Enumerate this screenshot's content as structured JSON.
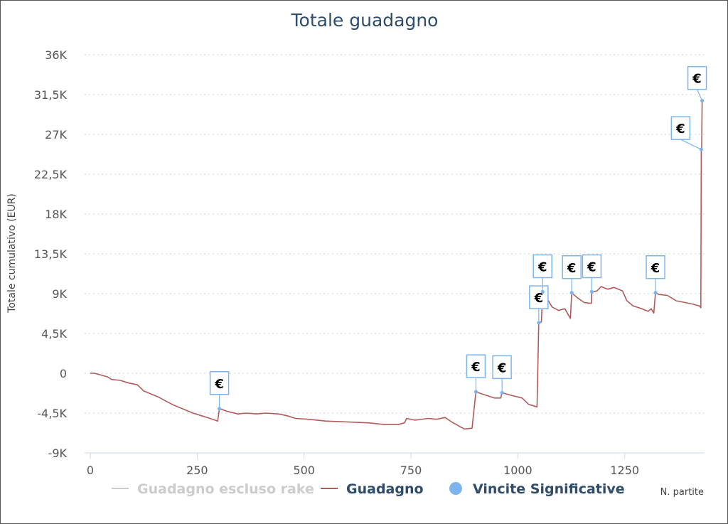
{
  "chart_data": {
    "type": "line",
    "title": "Totale guadagno",
    "ylabel": "Totale cumulativo (EUR)",
    "xlabel": "N. partite",
    "xlim": [
      0,
      1450
    ],
    "ylim": [
      -9000,
      36000
    ],
    "x_ticks": [
      "0",
      "250",
      "500",
      "750",
      "1000",
      "1250"
    ],
    "x_tick_values": [
      0,
      250,
      500,
      750,
      1000,
      1250
    ],
    "y_ticks": [
      "-9K",
      "-4,5K",
      "0",
      "4,5K",
      "9K",
      "13,5K",
      "18K",
      "22,5K",
      "27K",
      "31,5K",
      "36K"
    ],
    "y_tick_values": [
      -9000,
      -4500,
      0,
      4500,
      9000,
      13500,
      18000,
      22500,
      27000,
      31500,
      36000
    ],
    "grid": "horizontal-dotted",
    "legend_position": "bottom",
    "legend": [
      {
        "name": "Guadagno escluso rake",
        "color": "#cccccc",
        "marker": "line",
        "disabled": true
      },
      {
        "name": "Guadagno",
        "color": "#b35a5a",
        "marker": "line",
        "disabled": false
      },
      {
        "name": "Vincite Significative",
        "color": "#7cb5ec",
        "marker": "circle",
        "disabled": false
      }
    ],
    "series": [
      {
        "name": "Guadagno",
        "color": "#b35a5a",
        "points": [
          [
            0,
            0
          ],
          [
            10,
            0
          ],
          [
            25,
            -200
          ],
          [
            40,
            -400
          ],
          [
            50,
            -700
          ],
          [
            70,
            -800
          ],
          [
            90,
            -1100
          ],
          [
            110,
            -1300
          ],
          [
            125,
            -2000
          ],
          [
            140,
            -2300
          ],
          [
            160,
            -2700
          ],
          [
            175,
            -3100
          ],
          [
            195,
            -3600
          ],
          [
            215,
            -4000
          ],
          [
            240,
            -4500
          ],
          [
            260,
            -4800
          ],
          [
            280,
            -5100
          ],
          [
            298,
            -5400
          ],
          [
            302,
            -4000
          ],
          [
            320,
            -4300
          ],
          [
            345,
            -4600
          ],
          [
            365,
            -4500
          ],
          [
            390,
            -4600
          ],
          [
            410,
            -4500
          ],
          [
            440,
            -4600
          ],
          [
            460,
            -4800
          ],
          [
            480,
            -5100
          ],
          [
            510,
            -5200
          ],
          [
            550,
            -5400
          ],
          [
            600,
            -5500
          ],
          [
            650,
            -5600
          ],
          [
            690,
            -5800
          ],
          [
            720,
            -5800
          ],
          [
            735,
            -5600
          ],
          [
            740,
            -5100
          ],
          [
            760,
            -5300
          ],
          [
            790,
            -5100
          ],
          [
            810,
            -5200
          ],
          [
            830,
            -5000
          ],
          [
            845,
            -5500
          ],
          [
            860,
            -5900
          ],
          [
            875,
            -6300
          ],
          [
            893,
            -6200
          ],
          [
            902,
            -2100
          ],
          [
            920,
            -2400
          ],
          [
            945,
            -2800
          ],
          [
            960,
            -2800
          ],
          [
            963,
            -2200
          ],
          [
            985,
            -2500
          ],
          [
            1010,
            -2800
          ],
          [
            1025,
            -3500
          ],
          [
            1045,
            -3800
          ],
          [
            1049,
            5700
          ],
          [
            1055,
            5800
          ],
          [
            1058,
            9200
          ],
          [
            1065,
            8700
          ],
          [
            1080,
            7500
          ],
          [
            1095,
            7100
          ],
          [
            1110,
            7300
          ],
          [
            1123,
            6200
          ],
          [
            1126,
            9100
          ],
          [
            1140,
            8500
          ],
          [
            1155,
            8000
          ],
          [
            1172,
            7900
          ],
          [
            1173,
            9200
          ],
          [
            1185,
            9300
          ],
          [
            1195,
            9800
          ],
          [
            1210,
            9500
          ],
          [
            1225,
            9700
          ],
          [
            1245,
            9300
          ],
          [
            1255,
            8200
          ],
          [
            1270,
            7600
          ],
          [
            1290,
            7300
          ],
          [
            1305,
            7000
          ],
          [
            1312,
            7300
          ],
          [
            1318,
            6800
          ],
          [
            1322,
            9100
          ],
          [
            1330,
            8900
          ],
          [
            1350,
            8800
          ],
          [
            1370,
            8200
          ],
          [
            1390,
            8000
          ],
          [
            1410,
            7800
          ],
          [
            1425,
            7600
          ],
          [
            1428,
            7400
          ],
          [
            1429,
            25300
          ],
          [
            1430,
            25400
          ],
          [
            1431,
            30800
          ]
        ]
      }
    ],
    "markers": {
      "name": "Vincite Significative",
      "color": "#7cb5ec",
      "label": "€",
      "points": [
        {
          "x": 302,
          "y": -4000
        },
        {
          "x": 902,
          "y": -2100
        },
        {
          "x": 963,
          "y": -2200
        },
        {
          "x": 1049,
          "y": 5700
        },
        {
          "x": 1058,
          "y": 9200
        },
        {
          "x": 1126,
          "y": 9100
        },
        {
          "x": 1173,
          "y": 9200
        },
        {
          "x": 1322,
          "y": 9100
        },
        {
          "x": 1429,
          "y": 25300
        },
        {
          "x": 1431,
          "y": 30800
        }
      ]
    }
  }
}
